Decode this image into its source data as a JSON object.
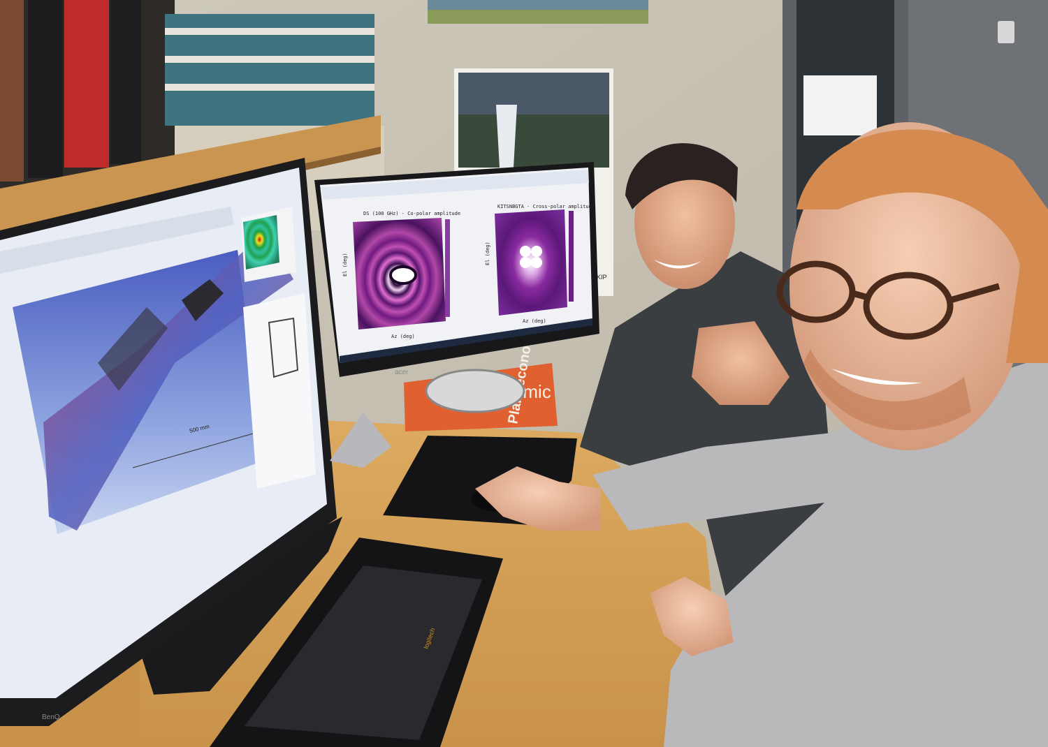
{
  "left_monitor": {
    "brand": "BenQ",
    "scale_bar_label": "500 mm"
  },
  "right_monitor": {
    "brand": "acer",
    "left_plot": {
      "title": "DS (100 GHz) - Co-polar amplitude",
      "xlabel": "Az (deg)",
      "ylabel": "El (deg)"
    },
    "right_plot": {
      "title": "KITSNBGTA - Cross-polar amplitude",
      "xlabel": "Az (deg)",
      "ylabel": "El (deg)"
    }
  },
  "box_label": "Planoeconomic",
  "box_label_partial": "onomic",
  "calendar_partial_text": "SKIP",
  "keyboard_brand": "logitech",
  "colors": {
    "wall": "#d8d4c8",
    "desk": "#d6a45a",
    "shelf": "#c99550",
    "monitor_bezel": "#1a1a1c",
    "plot_magma_dark": "#2a0a3c",
    "plot_magma_pink": "#e060c0",
    "viewport_blue": "#5a70c8",
    "box_orange": "#e06030",
    "sweater_grey": "#b9b9bb",
    "shirt_dark": "#3a3e40"
  }
}
